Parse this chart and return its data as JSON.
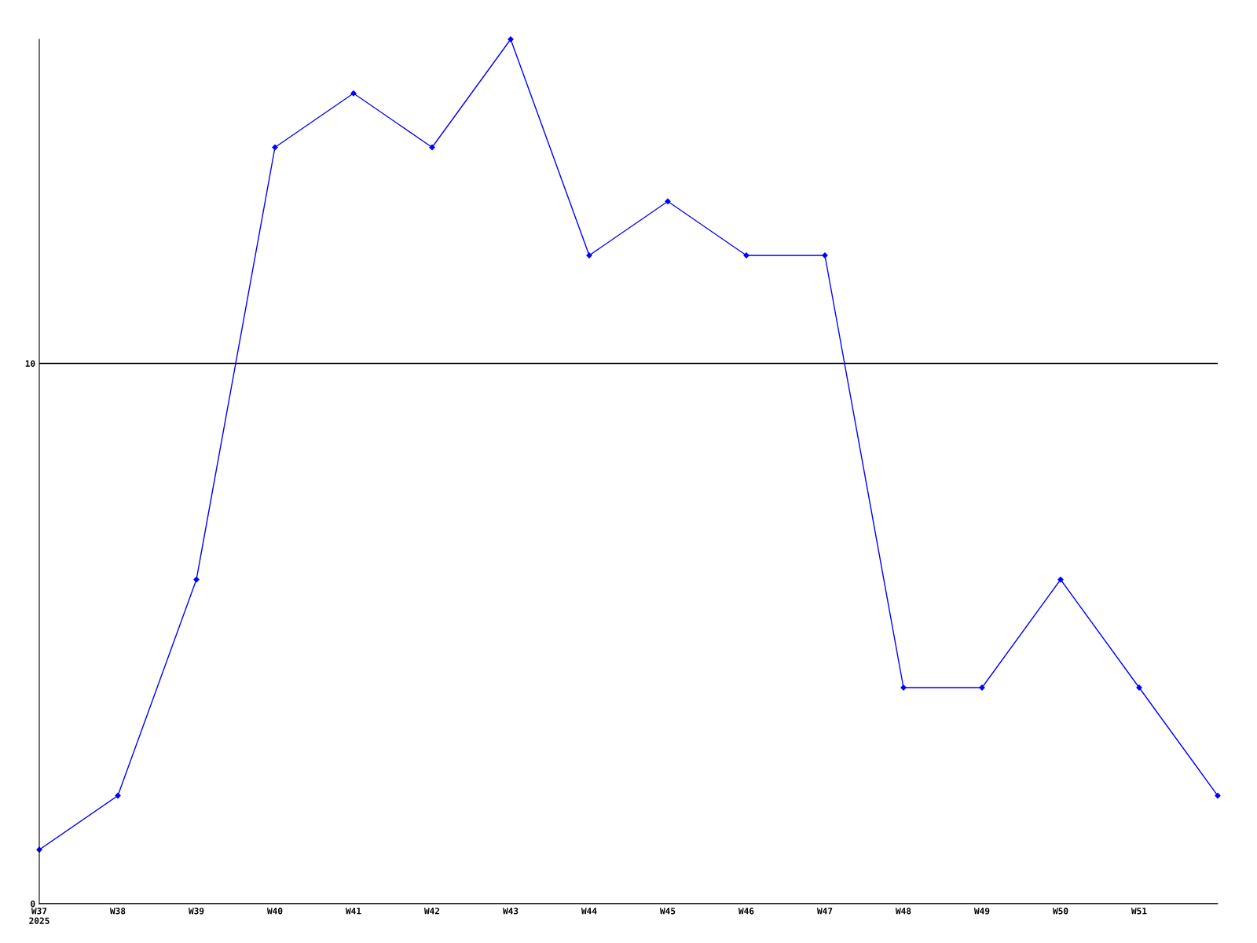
{
  "chart_data": {
    "type": "line",
    "categories": [
      "W37\n2025",
      "W38",
      "W39",
      "W40",
      "W41",
      "W42",
      "W43",
      "W44",
      "W45",
      "W46",
      "W47",
      "W48",
      "W49",
      "W50",
      "W51",
      null
    ],
    "series": [
      {
        "color": "#0000ff",
        "values": [
          1,
          2,
          6,
          14,
          15,
          14,
          16,
          12,
          13,
          12,
          12,
          4,
          4,
          6,
          4,
          2
        ]
      }
    ],
    "ylim": [
      0,
      16
    ],
    "yticks": [
      0,
      10
    ],
    "grid": "y",
    "marker": "diamond",
    "line_style": "solid"
  }
}
